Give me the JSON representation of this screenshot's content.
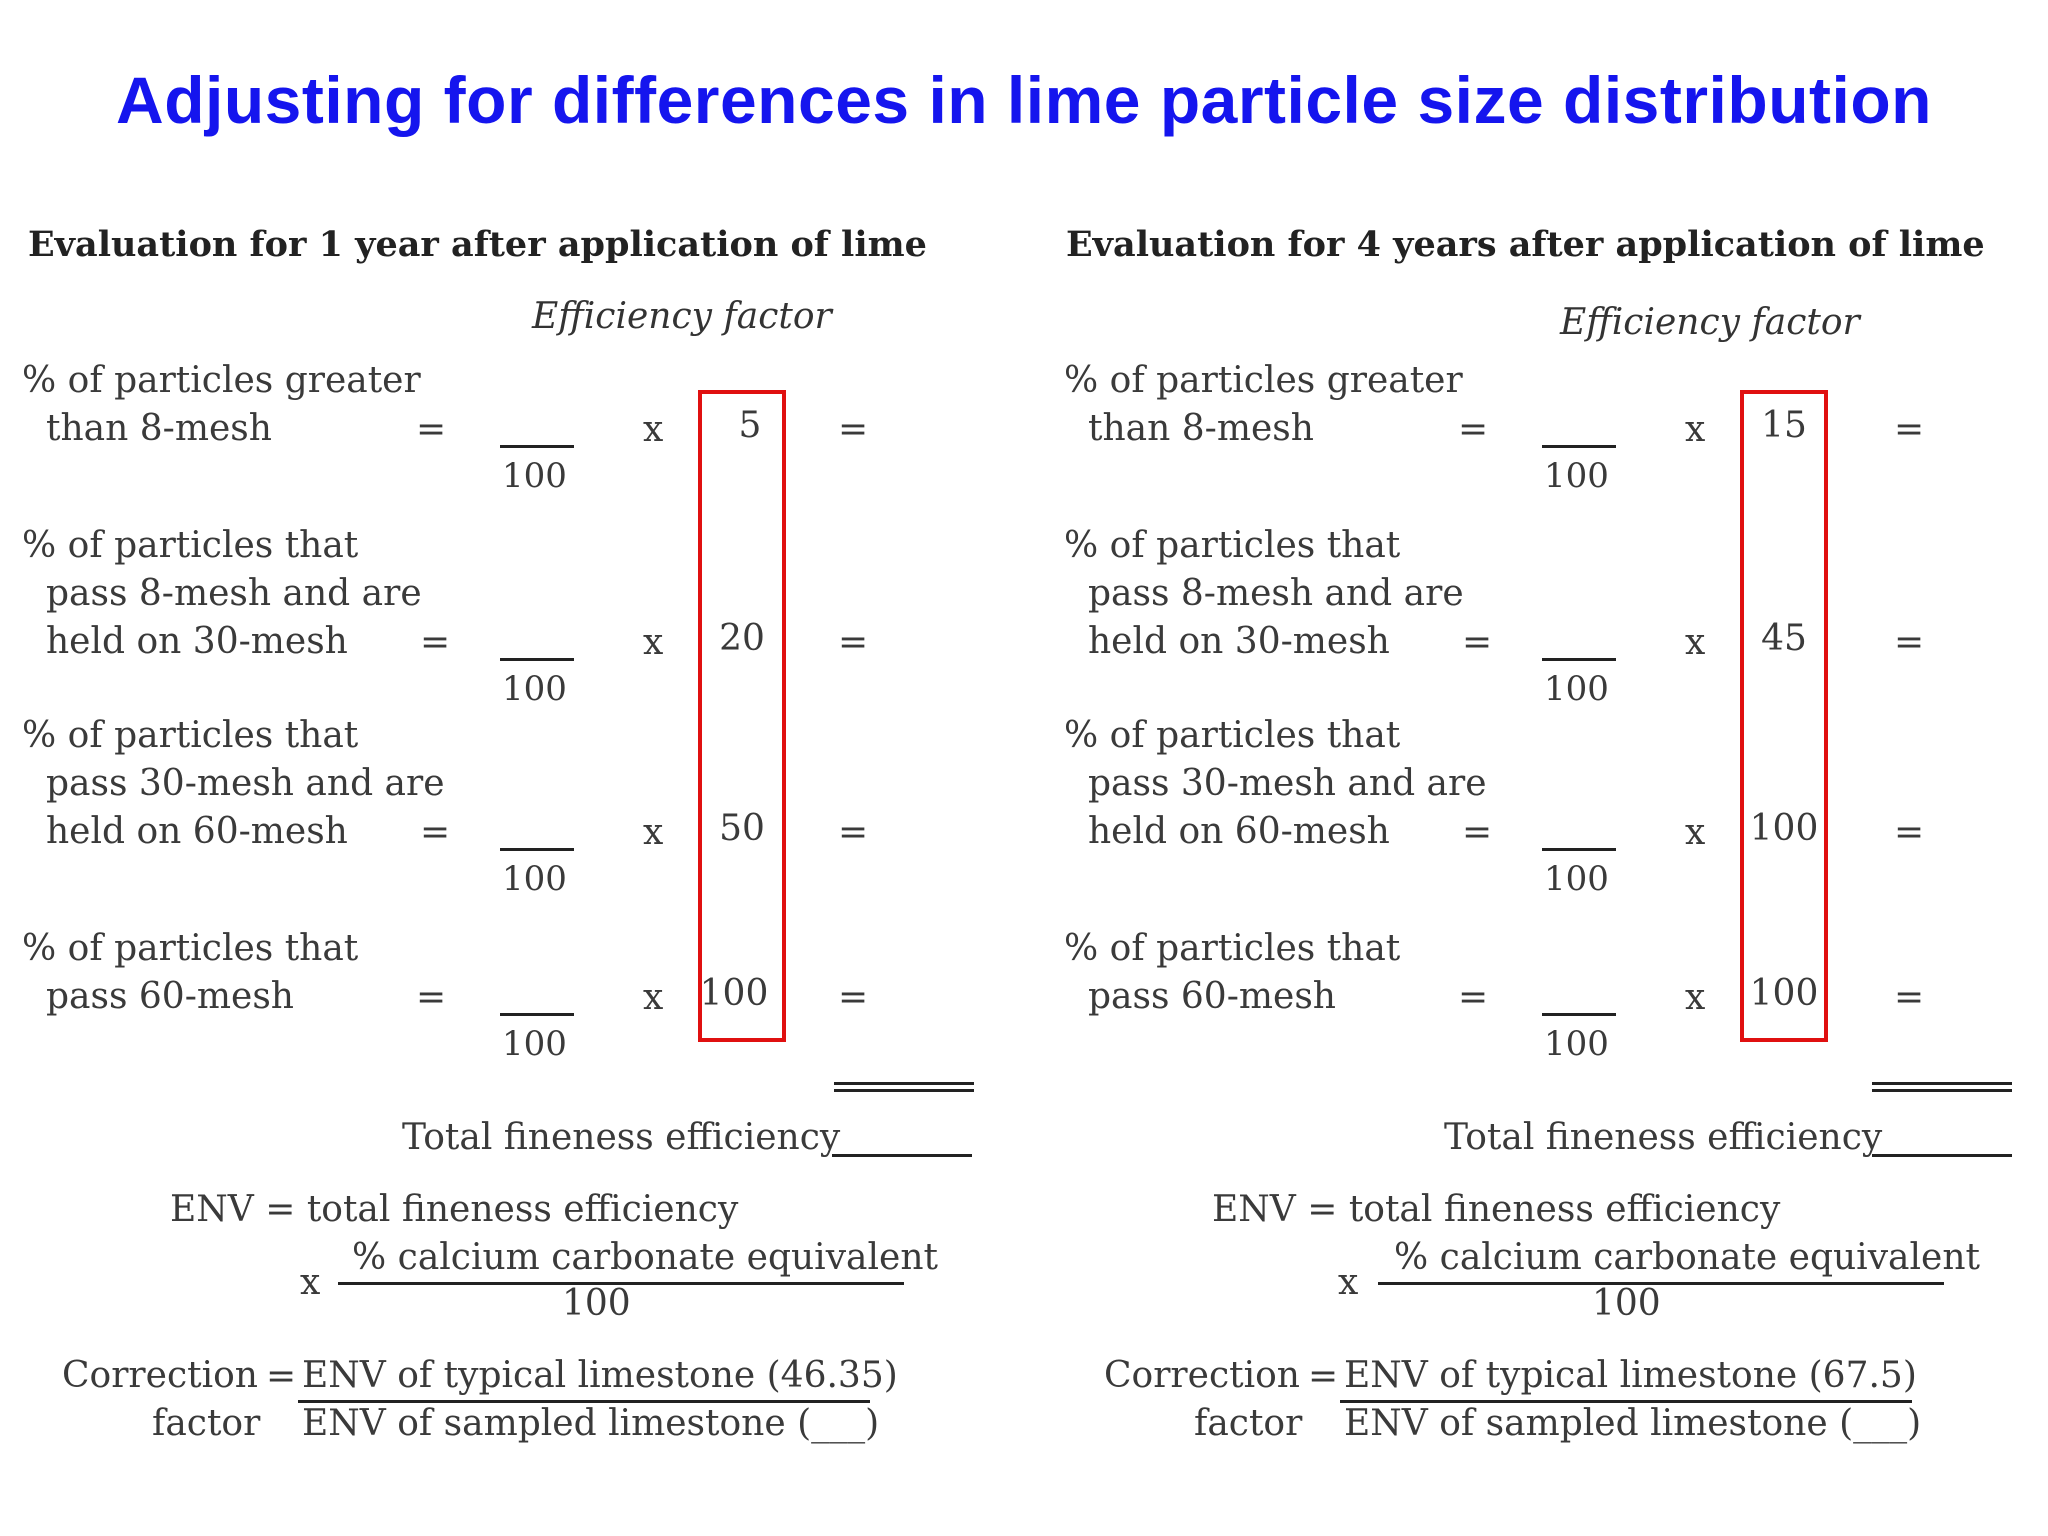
{
  "title": "Adjusting for differences in lime particle size distribution",
  "panels": [
    {
      "heading": "Evaluation for 1 year after application of lime",
      "efficiency_label": "Efficiency factor",
      "rows": [
        {
          "label_lines": [
            "% of particles greater",
            "than 8-mesh"
          ],
          "eq": "=",
          "denominator": "100",
          "times": "x",
          "factor": "5",
          "result_eq": "="
        },
        {
          "label_lines": [
            "% of particles that",
            "pass 8-mesh and are",
            "held on 30-mesh"
          ],
          "eq": "=",
          "denominator": "100",
          "times": "x",
          "factor": "20",
          "result_eq": "="
        },
        {
          "label_lines": [
            "% of particles that",
            "pass 30-mesh and are",
            "held on 60-mesh"
          ],
          "eq": "=",
          "denominator": "100",
          "times": "x",
          "factor": "50",
          "result_eq": "="
        },
        {
          "label_lines": [
            "% of particles that",
            "pass 60-mesh"
          ],
          "eq": "=",
          "denominator": "100",
          "times": "x",
          "factor": "100",
          "result_eq": "="
        }
      ],
      "total_label": "Total fineness efficiency",
      "env_line": "ENV = total fineness efficiency",
      "env_times": "x",
      "env_numerator": "% calcium carbonate equivalent",
      "env_denominator": "100",
      "correction_label_1": "Correction",
      "correction_label_2": "factor",
      "correction_eq": "=",
      "correction_numerator": "ENV of typical limestone (46.35)",
      "correction_denominator": "ENV of sampled limestone (___)"
    },
    {
      "heading": "Evaluation for 4 years after application of lime",
      "efficiency_label": "Efficiency factor",
      "rows": [
        {
          "label_lines": [
            "% of particles greater",
            "than 8-mesh"
          ],
          "eq": "=",
          "denominator": "100",
          "times": "x",
          "factor": "15",
          "result_eq": "="
        },
        {
          "label_lines": [
            "% of particles that",
            "pass 8-mesh and are",
            "held on 30-mesh"
          ],
          "eq": "=",
          "denominator": "100",
          "times": "x",
          "factor": "45",
          "result_eq": "="
        },
        {
          "label_lines": [
            "% of particles that",
            "pass 30-mesh and are",
            "held on 60-mesh"
          ],
          "eq": "=",
          "denominator": "100",
          "times": "x",
          "factor": "100",
          "result_eq": "="
        },
        {
          "label_lines": [
            "% of particles that",
            "pass 60-mesh"
          ],
          "eq": "=",
          "denominator": "100",
          "times": "x",
          "factor": "100",
          "result_eq": "="
        }
      ],
      "total_label": "Total fineness efficiency",
      "env_line": "ENV = total fineness efficiency",
      "env_times": "x",
      "env_numerator": "% calcium carbonate equivalent",
      "env_denominator": "100",
      "correction_label_1": "Correction",
      "correction_label_2": "factor",
      "correction_eq": "=",
      "correction_numerator": "ENV of typical limestone (67.5)",
      "correction_denominator": "ENV of sampled limestone (___)"
    }
  ]
}
